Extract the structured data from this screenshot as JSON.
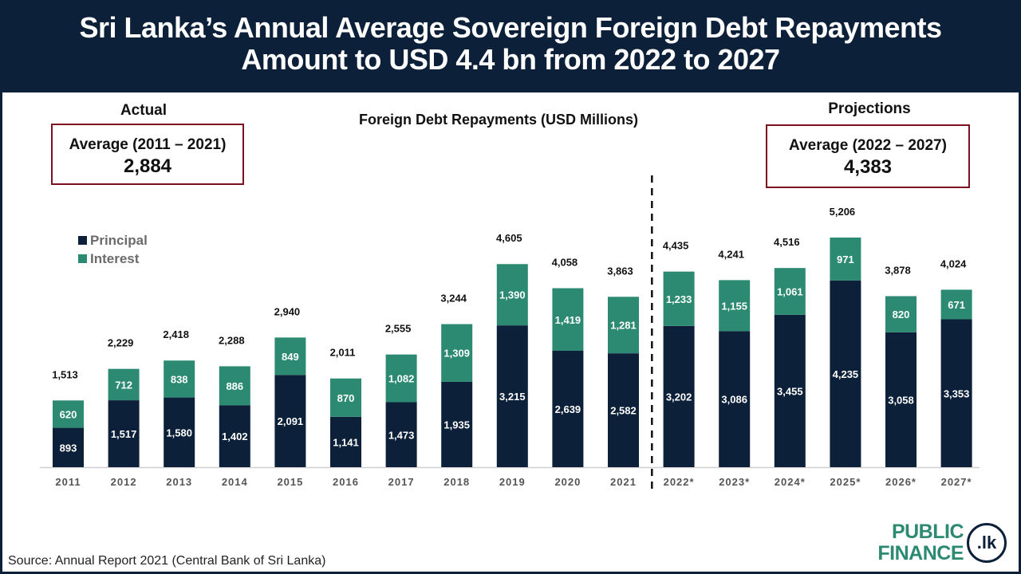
{
  "header": {
    "title_line1": "Sri Lanka’s Annual Average Sovereign Foreign Debt Repayments",
    "title_line2": "Amount to USD 4.4 bn from 2022 to 2027"
  },
  "actual": {
    "label": "Actual",
    "average_label": "Average (2011 – 2021)",
    "average_value": "2,884"
  },
  "projections": {
    "label": "Projections",
    "average_label": "Average (2022 – 2027)",
    "average_value": "4,383"
  },
  "source": "Source: Annual Report 2021 (Central Bank of Sri Lanka)",
  "logo": {
    "line1": "PUBLIC",
    "line2": "FINANCE",
    "badge": ".lk"
  },
  "colors": {
    "principal": "#0d2039",
    "interest": "#2d8a72",
    "box_border": "#7b1020",
    "header_bg": "#0d2039"
  },
  "chart_data": {
    "type": "bar",
    "stacked": true,
    "title": "Foreign Debt Repayments (USD Millions)",
    "xlabel": "",
    "ylabel": "",
    "ylim": [
      0,
      5500
    ],
    "grid": false,
    "legend_position": "top-left",
    "divider_after_category": "2021",
    "categories": [
      "2011",
      "2012",
      "2013",
      "2014",
      "2015",
      "2016",
      "2017",
      "2018",
      "2019",
      "2020",
      "2021",
      "2022*",
      "2023*",
      "2024*",
      "2025*",
      "2026*",
      "2027*"
    ],
    "series": [
      {
        "name": "Principal",
        "color": "#0d2039",
        "values": [
          893,
          1517,
          1580,
          1402,
          2091,
          1141,
          1473,
          1935,
          3215,
          2639,
          2582,
          3202,
          3086,
          3455,
          4235,
          3058,
          3353
        ]
      },
      {
        "name": "Interest",
        "color": "#2d8a72",
        "values": [
          620,
          712,
          838,
          886,
          849,
          870,
          1082,
          1309,
          1390,
          1419,
          1281,
          1233,
          1155,
          1061,
          971,
          820,
          671
        ]
      }
    ],
    "totals": [
      1513,
      2229,
      2418,
      2288,
      2940,
      2011,
      2555,
      3244,
      4605,
      4058,
      3863,
      4435,
      4241,
      4516,
      5206,
      3878,
      4024
    ]
  }
}
